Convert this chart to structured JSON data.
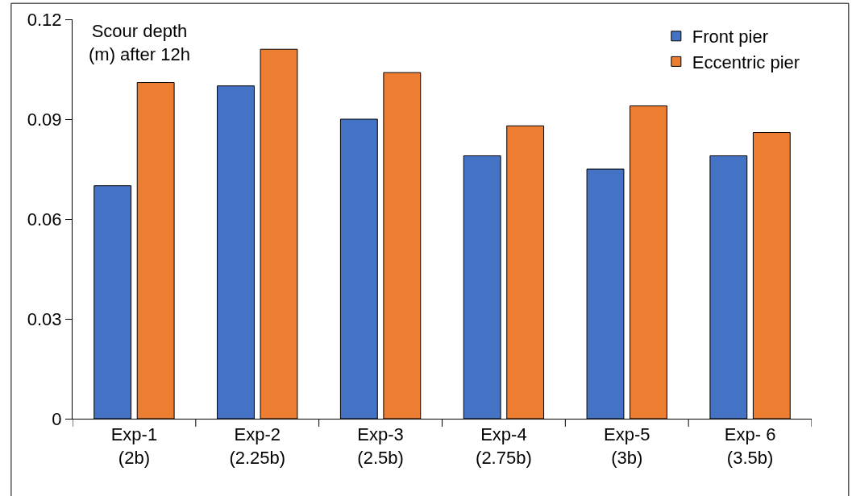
{
  "chart_data": {
    "type": "bar",
    "categories": [
      "Exp-1\n(2b)",
      "Exp-2\n(2.25b)",
      "Exp-3\n(2.5b)",
      "Exp-4\n(2.75b)",
      "Exp-5\n(3b)",
      "Exp- 6\n(3.5b)"
    ],
    "series": [
      {
        "name": "Front pier",
        "color": "#4472c4",
        "values": [
          0.07,
          0.1,
          0.09,
          0.079,
          0.075,
          0.079
        ]
      },
      {
        "name": "Eccentric pier",
        "color": "#ed7d31",
        "values": [
          0.101,
          0.111,
          0.104,
          0.088,
          0.094,
          0.086
        ]
      }
    ],
    "ylim": [
      0,
      0.12
    ],
    "yticks": [
      0,
      0.03,
      0.06,
      0.09,
      0.12
    ],
    "annotations": [
      "Scour depth\n(m) after 12h"
    ],
    "legend": "top right"
  }
}
